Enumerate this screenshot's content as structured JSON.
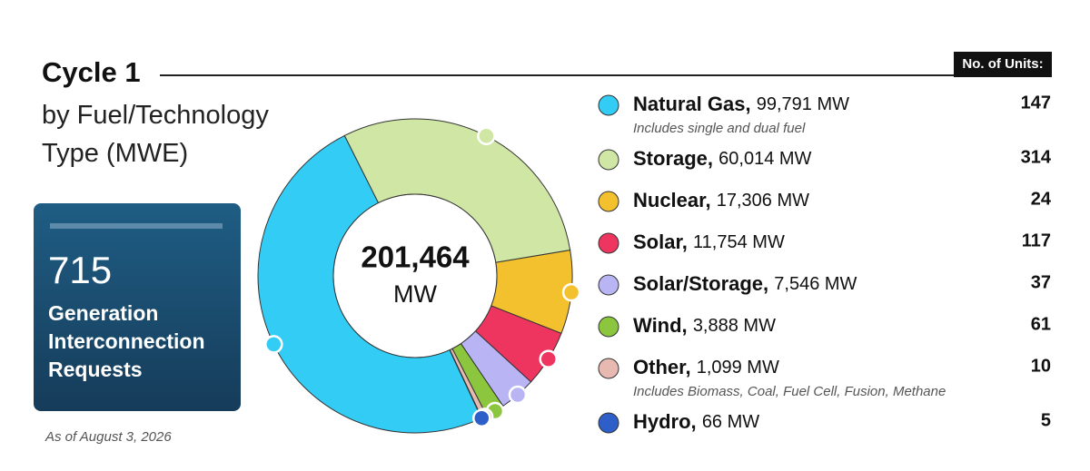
{
  "title": "Cycle 1",
  "subtitle": "by Fuel/Technology Type (MWE)",
  "summary": {
    "count": 715,
    "label": "Generation Interconnection Requests"
  },
  "footnote": "As of August 3, 2026",
  "chart_data": {
    "type": "donut",
    "categories": [
      "Natural Gas,",
      "Storage,",
      "Nuclear,",
      "Solar,",
      "Solar/Storage,",
      "Wind,",
      "Other,",
      "Hydro,"
    ],
    "values": [
      99791,
      60014,
      17306,
      11754,
      7546,
      3888,
      1099,
      66
    ],
    "value_labels": [
      "99,791 MW",
      "60,014 MW",
      "17,306 MW",
      "11,754 MW",
      "7,546 MW",
      "3,888 MW",
      "1,099 MW",
      "66 MW"
    ],
    "colors": [
      "#33ccf5",
      "#cfe6a4",
      "#f4c12e",
      "#ee3560",
      "#b9b5f5",
      "#8cc63f",
      "#e8b9b0",
      "#2e5fc9"
    ],
    "notes": [
      "Includes single and dual fuel",
      null,
      null,
      null,
      null,
      null,
      "Includes Biomass, Coal, Fuel Cell, Fusion, Methane",
      null
    ],
    "units_title": "No. of Units:",
    "units": [
      147,
      314,
      24,
      117,
      37,
      61,
      10,
      5
    ],
    "total": {
      "value": 201464,
      "label": "201,464"
    },
    "total_unit": "MW"
  }
}
